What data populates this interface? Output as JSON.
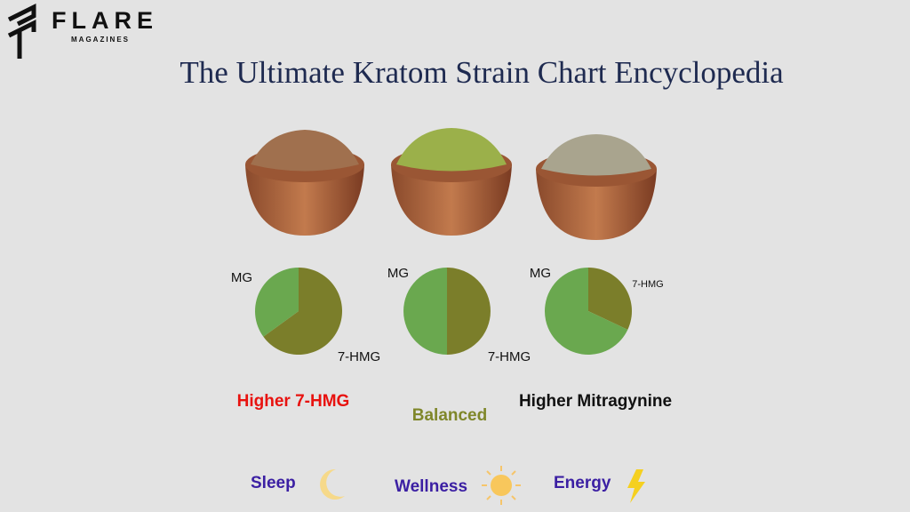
{
  "logo": {
    "name": "FLARE",
    "tagline": "MAGAZINES"
  },
  "title": "The Ultimate Kratom Strain Chart Encyclopedia",
  "chart_data": [
    {
      "type": "pie",
      "categories": [
        "MG",
        "7-HMG"
      ],
      "values": [
        35,
        65
      ],
      "colors": [
        "#6aa84f",
        "#7b7e2a"
      ]
    },
    {
      "type": "pie",
      "categories": [
        "MG",
        "7-HMG"
      ],
      "values": [
        50,
        50
      ],
      "colors": [
        "#6aa84f",
        "#7b7e2a"
      ]
    },
    {
      "type": "pie",
      "categories": [
        "MG",
        "7-HMG"
      ],
      "values": [
        68,
        32
      ],
      "colors": [
        "#6aa84f",
        "#7b7e2a"
      ]
    }
  ],
  "strains": [
    {
      "caption": "Higher 7-HMG",
      "effect": "Sleep"
    },
    {
      "caption": "Balanced",
      "effect": "Wellness"
    },
    {
      "caption": "Higher Mitragynine",
      "effect": "Energy"
    }
  ]
}
